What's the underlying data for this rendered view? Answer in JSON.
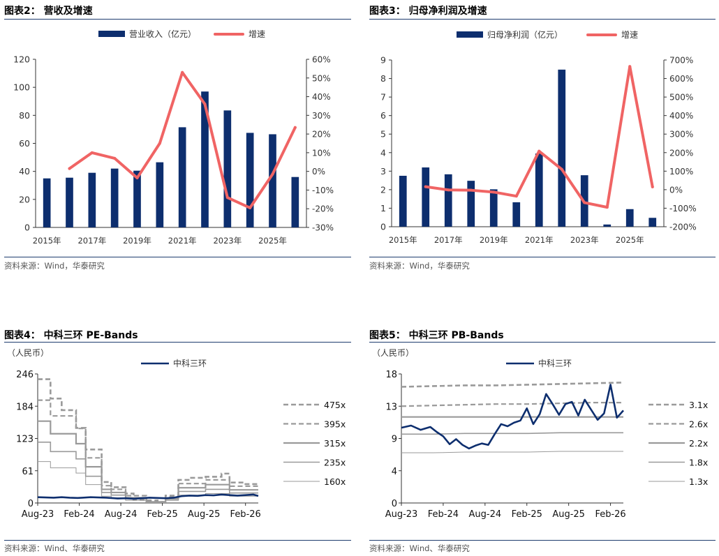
{
  "source_text": "资料来源：Wind，华泰研究",
  "source_text_2": "资料来源：Wind、华泰研究",
  "colors": {
    "bar": "#0d2e6e",
    "line": "#f06464",
    "rule": "#1d3b6e",
    "pe": "#999999"
  },
  "figure2": {
    "title": "图表2：  营收及增速",
    "chart_data": {
      "type": "bar",
      "categories": [
        "2015年",
        "2016年",
        "2017年",
        "2018年",
        "2019年",
        "2020年",
        "2021年",
        "2022年",
        "2023年",
        "2024年",
        "2025年",
        "2026年"
      ],
      "x_tick_labels": [
        "2015年",
        "2017年",
        "2019年",
        "2021年",
        "2023年",
        "2025年"
      ],
      "series": [
        {
          "name": "营业收入（亿元）",
          "type": "bar",
          "axis": "left",
          "values": [
            35,
            35.5,
            39,
            42,
            40.5,
            46.5,
            71.5,
            97,
            83.5,
            67.5,
            66.5,
            36
          ]
        },
        {
          "name": "增速",
          "type": "line",
          "axis": "right",
          "values": [
            null,
            1.5,
            10,
            7,
            -3.5,
            15,
            53,
            36,
            -14,
            -19.5,
            -1.5,
            23.5
          ]
        }
      ],
      "ylim": [
        0,
        120
      ],
      "yticks": [
        "0",
        "20",
        "40",
        "60",
        "80",
        "100",
        "120"
      ],
      "y2lim": [
        -30,
        60
      ],
      "y2ticks": [
        "-30%",
        "-20%",
        "-10%",
        "0%",
        "10%",
        "20%",
        "30%",
        "40%",
        "50%",
        "60%"
      ]
    }
  },
  "figure3": {
    "title": "图表3：  归母净利润及增速",
    "chart_data": {
      "type": "bar",
      "categories": [
        "2015年",
        "2016年",
        "2017年",
        "2018年",
        "2019年",
        "2020年",
        "2021年",
        "2022年",
        "2023年",
        "2024年",
        "2025年",
        "2026年"
      ],
      "x_tick_labels": [
        "2015年",
        "2017年",
        "2019年",
        "2021年",
        "2023年",
        "2025年"
      ],
      "series": [
        {
          "name": "归母净利润（亿元）",
          "type": "bar",
          "axis": "left",
          "values": [
            2.75,
            3.2,
            2.83,
            2.48,
            2.02,
            1.32,
            3.95,
            8.48,
            2.78,
            0.12,
            0.95,
            0.48
          ]
        },
        {
          "name": "增速",
          "type": "line",
          "axis": "right",
          "values": [
            null,
            16,
            -1.5,
            -3,
            -13,
            -35,
            208,
            110,
            -70,
            -95,
            665,
            15
          ]
        }
      ],
      "ylim": [
        0,
        9
      ],
      "yticks": [
        "0",
        "1",
        "2",
        "3",
        "4",
        "5",
        "6",
        "7",
        "8",
        "9"
      ],
      "y2lim": [
        -200,
        700
      ],
      "y2ticks": [
        "-200%",
        "-100%",
        "0%",
        "100%",
        "200%",
        "300%",
        "400%",
        "500%",
        "600%",
        "700%"
      ]
    }
  },
  "figure4": {
    "title": "图表4：  中科三环 PE-Bands",
    "unit": "（人民币）",
    "chart_data": {
      "type": "line",
      "yticks": [
        "0",
        "61",
        "123",
        "184",
        "246"
      ],
      "ylim": [
        0,
        246
      ],
      "x_tick_labels": [
        "Aug-23",
        "Feb-24",
        "Aug-24",
        "Feb-25",
        "Aug-25",
        "Feb-26"
      ],
      "price_series": {
        "name": "中科三环",
        "x": [
          0,
          5,
          10,
          15,
          20,
          25,
          28,
          33,
          38,
          43,
          48,
          50,
          55,
          60,
          65,
          70,
          75,
          80,
          85,
          90,
          95,
          100,
          105,
          110,
          115,
          120,
          125,
          130,
          135,
          138
        ],
        "values": [
          11,
          10.5,
          10,
          11,
          10,
          9.5,
          10,
          11,
          10.5,
          10,
          9,
          8.5,
          9,
          8,
          9,
          10,
          9.5,
          9,
          10,
          13,
          14,
          13.5,
          15,
          14.5,
          16,
          15,
          14,
          15,
          16,
          13.5
        ]
      },
      "bands": [
        {
          "name": "475x",
          "style": "dashed",
          "x": [
            0,
            8,
            8,
            15,
            15,
            24,
            24,
            30,
            30,
            40,
            40,
            46,
            46,
            55,
            55,
            60,
            60,
            68,
            68,
            75,
            75,
            80,
            80,
            88,
            88,
            95,
            95,
            105,
            105,
            115,
            115,
            120,
            120,
            130,
            130,
            138
          ],
          "values": [
            236,
            236,
            199,
            199,
            177,
            177,
            143,
            143,
            102,
            102,
            40,
            40,
            30,
            30,
            18,
            18,
            6,
            6,
            5,
            5,
            2,
            2,
            14,
            14,
            44,
            44,
            48,
            48,
            50,
            50,
            56,
            56,
            39,
            39,
            36,
            36
          ]
        },
        {
          "name": "395x",
          "style": "dashed",
          "x": [
            0,
            8,
            8,
            24,
            24,
            30,
            30,
            40,
            40,
            46,
            46,
            55,
            55,
            68,
            68,
            80,
            80,
            88,
            88,
            105,
            105,
            120,
            120,
            138
          ],
          "values": [
            196,
            196,
            166,
            166,
            142,
            142,
            86,
            86,
            33,
            33,
            26,
            26,
            14,
            14,
            2,
            2,
            11,
            11,
            37,
            37,
            44,
            44,
            32,
            32
          ]
        },
        {
          "name": "315x",
          "style": "solid",
          "x": [
            0,
            8,
            8,
            24,
            24,
            30,
            30,
            40,
            40,
            46,
            46,
            55,
            55,
            68,
            68,
            80,
            80,
            88,
            88,
            105,
            105,
            120,
            120,
            138
          ],
          "values": [
            156,
            156,
            132,
            132,
            113,
            113,
            69,
            69,
            26,
            26,
            20,
            20,
            10,
            10,
            2,
            2,
            9,
            9,
            29,
            29,
            35,
            35,
            25,
            25
          ]
        },
        {
          "name": "235x",
          "style": "solid",
          "x": [
            0,
            8,
            8,
            24,
            24,
            30,
            30,
            40,
            40,
            46,
            46,
            55,
            55,
            68,
            68,
            80,
            80,
            88,
            88,
            105,
            105,
            120,
            120,
            138
          ],
          "values": [
            116,
            116,
            98,
            98,
            84,
            84,
            51,
            51,
            20,
            20,
            15,
            15,
            8,
            8,
            1,
            1,
            7,
            7,
            22,
            22,
            26,
            26,
            19,
            19
          ]
        },
        {
          "name": "160x",
          "style": "solid",
          "x": [
            0,
            8,
            8,
            24,
            24,
            30,
            30,
            40,
            40,
            46,
            46,
            55,
            55,
            68,
            68,
            80,
            80,
            88,
            88,
            105,
            105,
            120,
            120,
            138
          ],
          "values": [
            79,
            79,
            67,
            67,
            57,
            57,
            35,
            35,
            13,
            13,
            10,
            10,
            5,
            5,
            1,
            1,
            5,
            5,
            15,
            15,
            18,
            18,
            13,
            13
          ]
        }
      ]
    }
  },
  "figure5": {
    "title": "图表5：  中科三环 PB-Bands",
    "unit": "（人民币）",
    "chart_data": {
      "type": "line",
      "yticks": [
        "0",
        "4",
        "9",
        "13",
        "18"
      ],
      "ylim": [
        0,
        18
      ],
      "x_tick_labels": [
        "Aug-23",
        "Feb-24",
        "Aug-24",
        "Feb-25",
        "Aug-25",
        "Feb-26"
      ],
      "price_series": {
        "name": "中科三环",
        "x": [
          0,
          6,
          12,
          18,
          22,
          26,
          30,
          34,
          38,
          42,
          46,
          50,
          54,
          58,
          62,
          66,
          70,
          74,
          78,
          82,
          86,
          90,
          94,
          98,
          102,
          106,
          110,
          114,
          118,
          122,
          126,
          130,
          134,
          138
        ],
        "values": [
          10.5,
          10.8,
          10.2,
          10.6,
          9.9,
          9.3,
          8.2,
          8.9,
          8.1,
          7.6,
          8.0,
          8.3,
          8.1,
          9.6,
          11.0,
          10.7,
          11.2,
          11.5,
          13.2,
          11.0,
          12.4,
          15.2,
          13.8,
          12.3,
          13.8,
          14.1,
          12.2,
          14.4,
          13.0,
          11.6,
          12.5,
          16.5,
          11.9,
          12.9
        ]
      },
      "bands": [
        {
          "name": "3.1x",
          "style": "dashed",
          "values": [
            16.2,
            16.3,
            16.4,
            16.4,
            16.5,
            16.6,
            16.7,
            16.8
          ]
        },
        {
          "name": "2.6x",
          "style": "dashed",
          "values": [
            13.5,
            13.6,
            13.7,
            13.8,
            13.8,
            13.9,
            14.0,
            14.0
          ]
        },
        {
          "name": "2.2x",
          "style": "solid",
          "values": [
            12.0,
            12.0,
            12.0,
            12.0,
            12.0,
            12.0,
            12.0,
            12.0
          ]
        },
        {
          "name": "1.8x",
          "style": "solid",
          "values": [
            9.6,
            9.6,
            9.7,
            9.7,
            9.7,
            9.8,
            9.8,
            9.8
          ]
        },
        {
          "name": "1.3x",
          "style": "solid",
          "values": [
            7.0,
            7.0,
            7.1,
            7.1,
            7.1,
            7.2,
            7.2,
            7.2
          ]
        }
      ]
    }
  }
}
